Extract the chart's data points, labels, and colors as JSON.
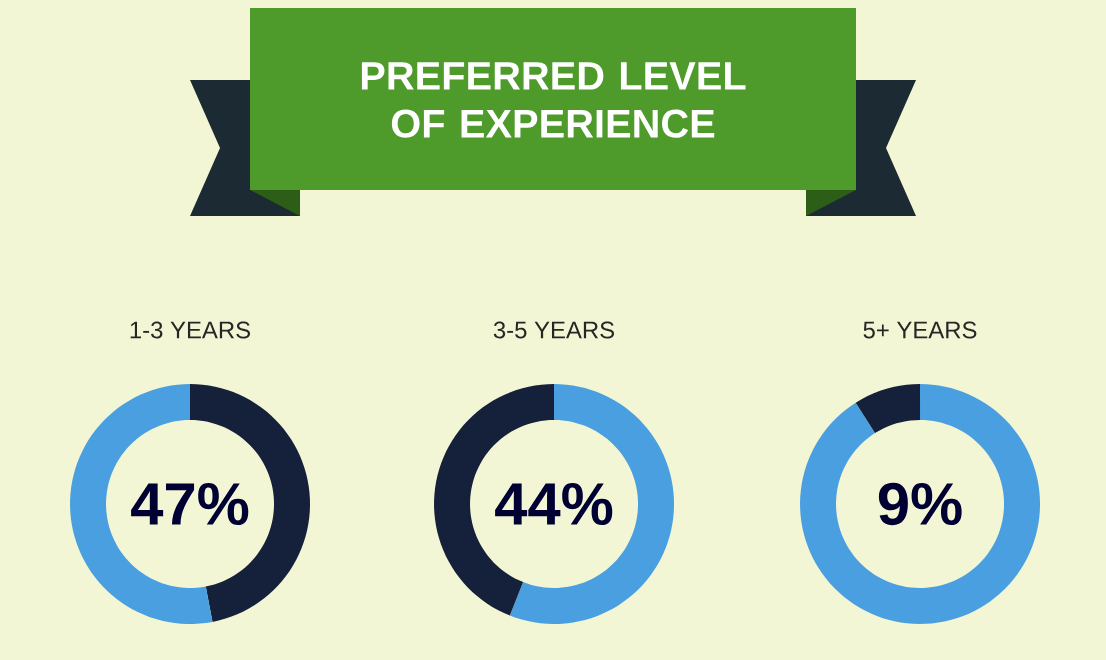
{
  "chart_data": [
    {
      "type": "other",
      "title": "PREFERRED LEVEL OF EXPERIENCE"
    },
    {
      "type": "donut",
      "title": "1-3 YEARS",
      "categories": [
        null,
        null
      ],
      "values": [
        47,
        53
      ],
      "colors": [
        "#15203a",
        "#4a9fe0"
      ],
      "annotations": [
        "47%"
      ]
    },
    {
      "type": "donut",
      "title": "3-5 YEARS",
      "categories": [
        null,
        null
      ],
      "values": [
        56,
        44
      ],
      "colors": [
        "#4a9fe0",
        "#15203a"
      ],
      "annotations": [
        "44%"
      ]
    },
    {
      "type": "donut",
      "title": "5+ YEARS",
      "categories": [
        null,
        null
      ],
      "values": [
        91,
        9
      ],
      "colors": [
        "#4a9fe0",
        "#15203a"
      ],
      "annotations": [
        "9%"
      ]
    }
  ]
}
